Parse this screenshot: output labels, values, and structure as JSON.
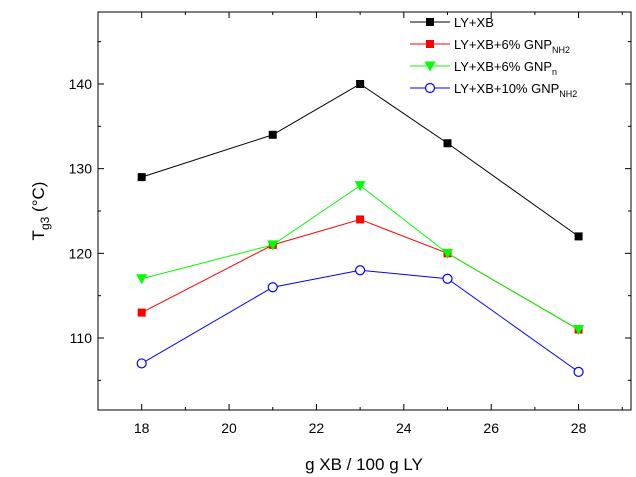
{
  "chart_data": {
    "type": "line",
    "xlabel": "g XB / 100 g LY",
    "ylabel": {
      "main": "T",
      "sub": "g3",
      "rest": " (°C)"
    },
    "xlim": [
      17,
      29.2
    ],
    "ylim": [
      101.5,
      148.5
    ],
    "x_ticks": [
      18,
      20,
      22,
      24,
      26,
      28
    ],
    "y_ticks": [
      110,
      120,
      130,
      140
    ],
    "x": [
      18,
      21,
      23,
      25,
      28
    ],
    "grid": false,
    "legend_position": "top-right",
    "series": [
      {
        "name": {
          "main": "LY+XB",
          "sub": ""
        },
        "color": "#000000",
        "marker": "square",
        "values": [
          129,
          134,
          140,
          133,
          122
        ]
      },
      {
        "name": {
          "main": "LY+XB+6% GNP",
          "sub": "NH2"
        },
        "color": "#ff0000",
        "marker": "square",
        "values": [
          113,
          121,
          124,
          120,
          111
        ]
      },
      {
        "name": {
          "main": "LY+XB+6% GNP",
          "sub": "n"
        },
        "color": "#00ff00",
        "marker": "triangle-down",
        "values": [
          117,
          121,
          128,
          120,
          111
        ]
      },
      {
        "name": {
          "main": "LY+XB+10% GNP",
          "sub": "NH2"
        },
        "color": "#0000ff",
        "marker": "circle-open",
        "values": [
          107,
          116,
          118,
          117,
          106
        ]
      }
    ]
  }
}
